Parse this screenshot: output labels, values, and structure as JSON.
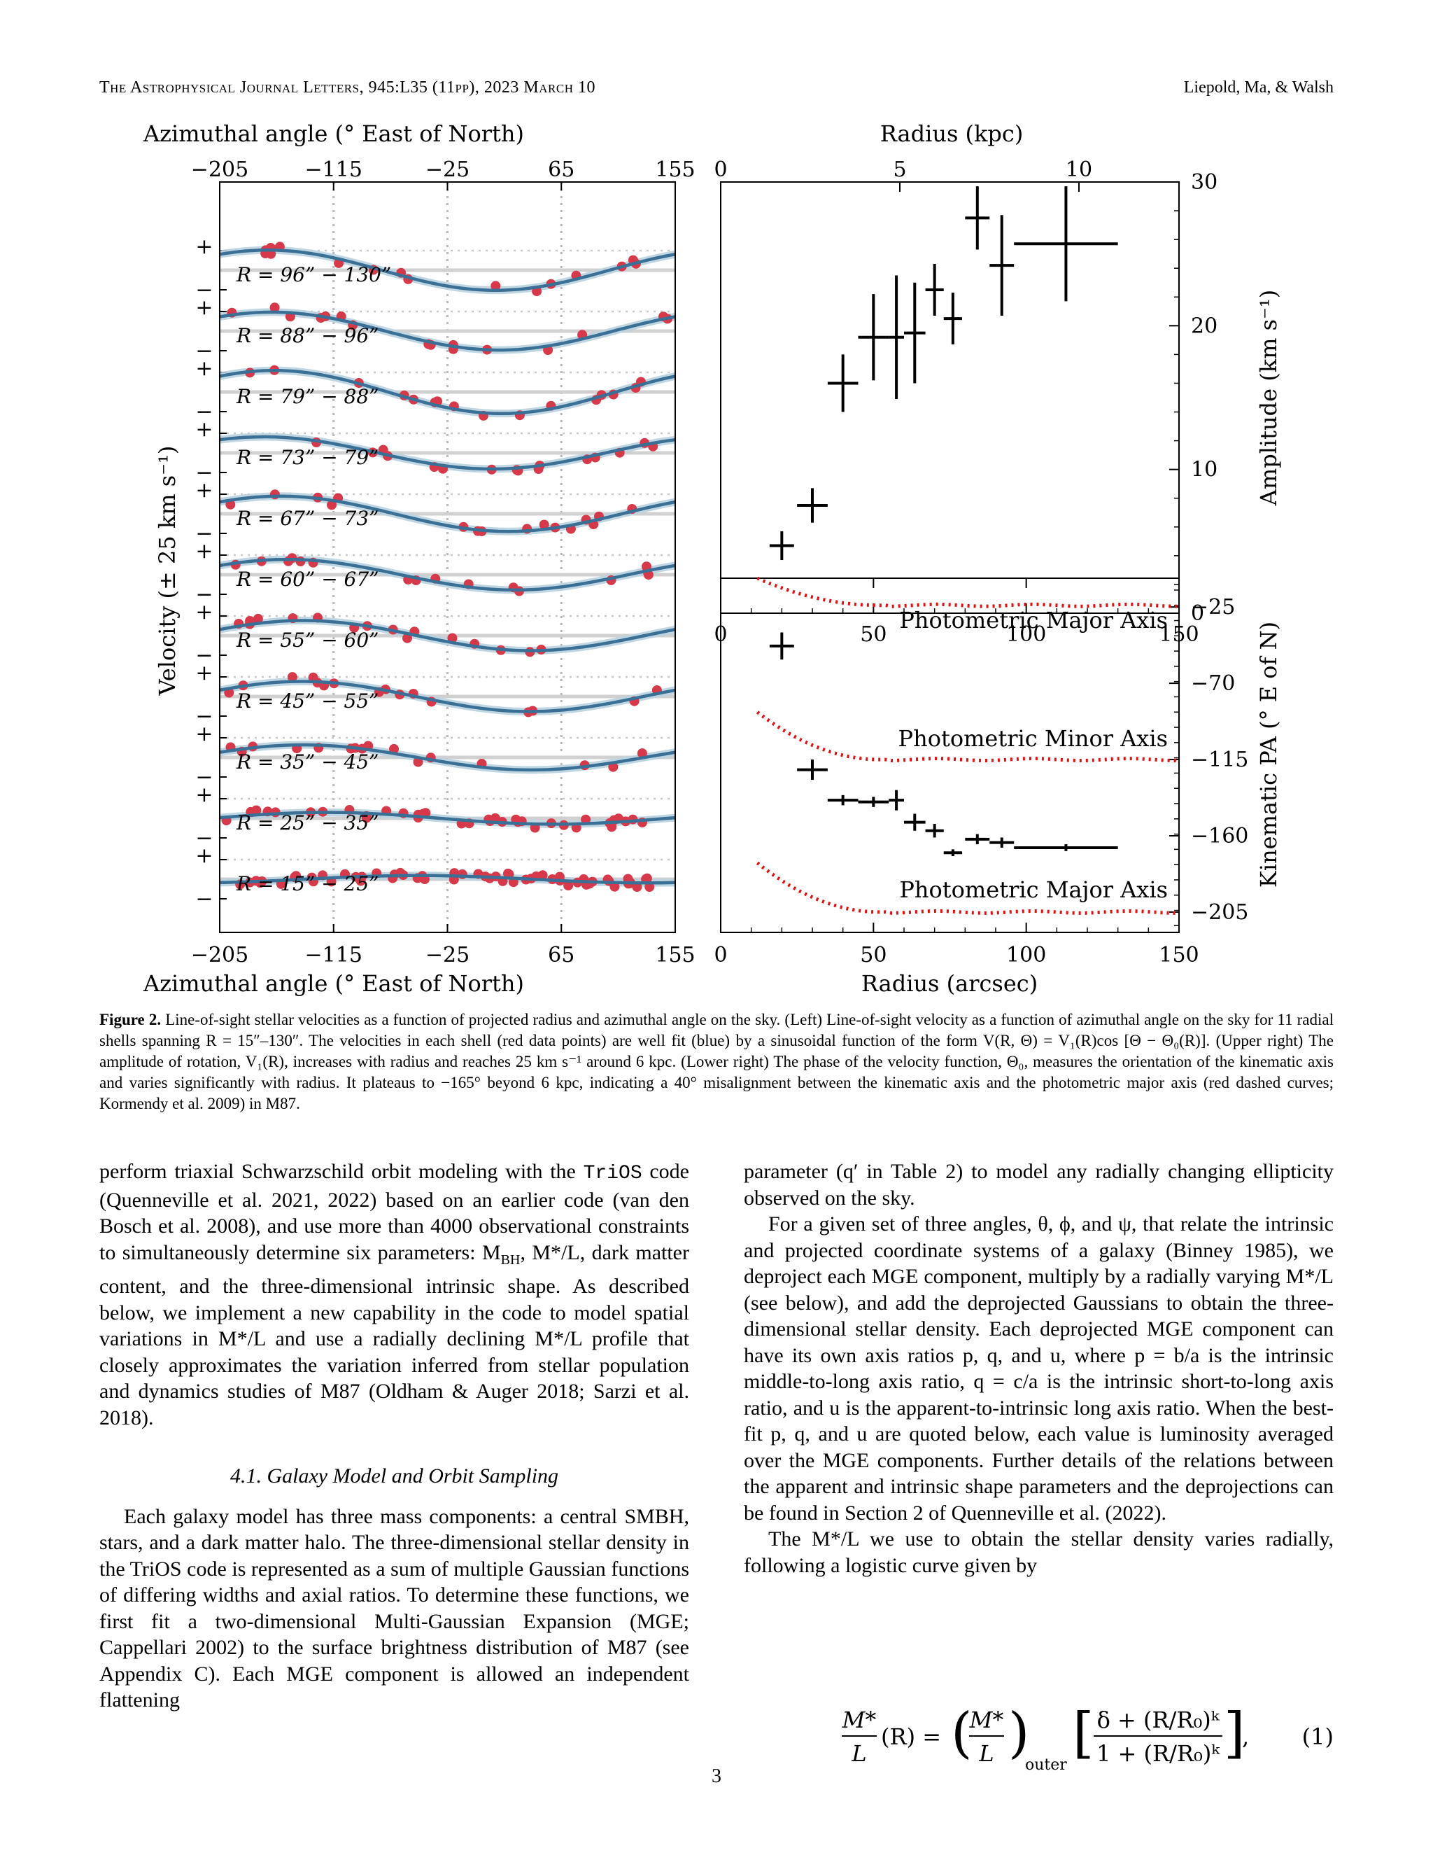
{
  "header": {
    "journal": "The Astrophysical Journal Letters, 945:L35 (11pp), 2023 March 10",
    "authors": "Liepold, Ma, & Walsh"
  },
  "figure": {
    "left_panel": {
      "top_axis_label": "Azimuthal angle (° East of North)",
      "bottom_axis_label": "Azimuthal angle (° East of North)",
      "y_label": "Velocity (± 25 km s⁻¹)",
      "x_ticks": [
        "−205",
        "−115",
        "−25",
        "65",
        "155"
      ],
      "shells": [
        "R = 96” − 130”",
        "R = 88” − 96”",
        "R = 79” − 88”",
        "R = 73” − 79”",
        "R = 67” − 73”",
        "R = 60” − 67”",
        "R = 55” − 60”",
        "R = 45” − 55”",
        "R = 35” − 45”",
        "R = 25” − 35”",
        "R = 15” − 25”"
      ]
    },
    "upper_right": {
      "top_axis_label": "Radius (kpc)",
      "top_ticks": [
        "0",
        "5",
        "10"
      ],
      "y_label": "Amplitude (km s⁻¹)",
      "y_ticks": [
        "0",
        "10",
        "20",
        "30"
      ],
      "x_ticks": [
        "0",
        "50",
        "100",
        "150"
      ]
    },
    "lower_right": {
      "x_label": "Radius (arcsec)",
      "x_ticks": [
        "0",
        "50",
        "100",
        "150"
      ],
      "y_label": "Kinematic PA (° E of N)",
      "y_ticks": [
        "−25",
        "−70",
        "−115",
        "−160",
        "−205"
      ],
      "annotations": [
        "Photometric Major Axis",
        "Photometric Minor Axis",
        "Photometric Major Axis"
      ]
    },
    "colors": {
      "data": "#d63a4a",
      "fit": "#3a6f96",
      "fit_band": "#b9d3e0",
      "photometric": "#e01010"
    }
  },
  "chart_data": [
    {
      "type": "scatter",
      "title": "",
      "xlabel": "Radius (arcsec)",
      "ylabel": "Amplitude (km s⁻¹)",
      "xlim": [
        0,
        150
      ],
      "ylim": [
        0,
        30
      ],
      "points": [
        {
          "x": 20,
          "y": 4.7,
          "xerr": 4,
          "yerr": 1
        },
        {
          "x": 30,
          "y": 7.5,
          "xerr": 5,
          "yerr": 1.2
        },
        {
          "x": 40,
          "y": 16,
          "xerr": 5,
          "yerr": 2
        },
        {
          "x": 50,
          "y": 19.2,
          "xerr": 5,
          "yerr": 3
        },
        {
          "x": 57.5,
          "y": 19.2,
          "xerr": 2.5,
          "yerr": 4.3
        },
        {
          "x": 63.5,
          "y": 19.5,
          "xerr": 3.5,
          "yerr": 3.5
        },
        {
          "x": 70,
          "y": 22.5,
          "xerr": 3,
          "yerr": 1.8
        },
        {
          "x": 76,
          "y": 20.5,
          "xerr": 3,
          "yerr": 1.8
        },
        {
          "x": 84,
          "y": 27.5,
          "xerr": 4,
          "yerr": 2.2
        },
        {
          "x": 92,
          "y": 24.2,
          "xerr": 4,
          "yerr": 3.5
        },
        {
          "x": 113,
          "y": 25.7,
          "xerr": 17,
          "yerr": 4
        }
      ]
    },
    {
      "type": "scatter",
      "title": "",
      "xlabel": "Radius (arcsec)",
      "ylabel": "Kinematic PA (° E of N)",
      "xlim": [
        0,
        150
      ],
      "ylim": [
        -217,
        -8
      ],
      "points": [
        {
          "x": 20,
          "y": -48,
          "xerr": 4,
          "yerr": 8
        },
        {
          "x": 30,
          "y": -121,
          "xerr": 5,
          "yerr": 6
        },
        {
          "x": 40,
          "y": -139,
          "xerr": 5,
          "yerr": 3
        },
        {
          "x": 50,
          "y": -140,
          "xerr": 5,
          "yerr": 3
        },
        {
          "x": 57.5,
          "y": -139,
          "xerr": 2.5,
          "yerr": 6
        },
        {
          "x": 63.5,
          "y": -152,
          "xerr": 3.5,
          "yerr": 5
        },
        {
          "x": 70,
          "y": -157,
          "xerr": 3,
          "yerr": 4
        },
        {
          "x": 76,
          "y": -170,
          "xerr": 3,
          "yerr": 2
        },
        {
          "x": 84,
          "y": -162,
          "xerr": 4,
          "yerr": 3
        },
        {
          "x": 92,
          "y": -164,
          "xerr": 4,
          "yerr": 3
        },
        {
          "x": 113,
          "y": -167,
          "xerr": 17,
          "yerr": 2
        }
      ],
      "reference_curves": [
        {
          "name": "Photometric Major Axis",
          "y_start": -8,
          "y_end": -24
        },
        {
          "name": "Photometric Minor Axis",
          "y_start": -87,
          "y_end": -115
        },
        {
          "name": "Photometric Major Axis",
          "y_start": -176,
          "y_end": -205
        }
      ]
    }
  ],
  "caption": {
    "label": "Figure 2.",
    "text": " Line-of-sight stellar velocities as a function of projected radius and azimuthal angle on the sky. (Left) Line-of-sight velocity as a function of azimuthal angle on the sky for 11 radial shells spanning R = 15″–130″. The velocities in each shell (red data points) are well fit (blue) by a sinusoidal function of the form V(R, Θ) = V₁(R)cos [Θ − Θ₀(R)]. (Upper right) The amplitude of rotation, V₁(R), increases with radius and reaches 25 km s⁻¹ around 6 kpc. (Lower right) The phase of the velocity function, Θ₀, measures the orientation of the kinematic axis and varies significantly with radius. It plateaus to −165° beyond 6 kpc, indicating a 40° misalignment between the kinematic axis and the photometric major axis (red dashed curves; Kormendy et al. 2009) in M87."
  },
  "left_column": {
    "p1a": "perform triaxial Schwarzschild orbit modeling with the ",
    "p1_code": "TriOS",
    "p1b": " code (Quenneville et al. 2021, 2022) based on an earlier code (van den Bosch et al. 2008), and use more than 4000 observational constraints to simultaneously determine six parameters: M",
    "p1_sub": "BH",
    "p1c": ", M*/L, dark matter content, and the three-dimensional intrinsic shape. As described below, we implement a new capability in the code to model spatial variations in M*/L and use a radially declining M*/L profile that closely approximates the variation inferred from stellar population and dynamics studies of M87 (Oldham & Auger 2018; Sarzi et al. 2018).",
    "section": "4.1. Galaxy Model and Orbit Sampling",
    "p2": "Each galaxy model has three mass components: a central SMBH, stars, and a dark matter halo. The three-dimensional stellar density in the TriOS code is represented as a sum of multiple Gaussian functions of differing widths and axial ratios. To determine these functions, we first fit a two-dimensional Multi-Gaussian Expansion (MGE; Cappellari 2002) to the surface brightness distribution of M87 (see Appendix C). Each MGE component is allowed an independent flattening"
  },
  "right_column": {
    "p1": "parameter (q′ in Table 2) to model any radially changing ellipticity observed on the sky.",
    "p2": "For a given set of three angles, θ, ϕ, and ψ, that relate the intrinsic and projected coordinate systems of a galaxy (Binney 1985), we deproject each MGE component, multiply by a radially varying M*/L (see below), and add the deprojected Gaussians to obtain the three-dimensional stellar density. Each deprojected MGE component can have its own axis ratios p, q, and u, where p = b/a is the intrinsic middle-to-long axis ratio, q = c/a is the intrinsic short-to-long axis ratio, and u is the apparent-to-intrinsic long axis ratio. When the best-fit p, q, and u are quoted below, each value is luminosity averaged over the MGE components. Further details of the relations between the apparent and intrinsic shape parameters and the deprojections can be found in Section 2 of Quenneville et al. (2022).",
    "p3": "The M*/L we use to obtain the stellar density varies radially, following a logistic curve given by"
  },
  "equation": {
    "number": "(1)",
    "lhs_num": "M*",
    "lhs_den": "L",
    "lhs_arg": "(R) =",
    "mid_num": "M*",
    "mid_den": "L",
    "mid_sub": "outer",
    "rhs_num": "δ + (R/R₀)ᵏ",
    "rhs_den": "1 + (R/R₀)ᵏ",
    "tail": ","
  },
  "page_number": "3"
}
